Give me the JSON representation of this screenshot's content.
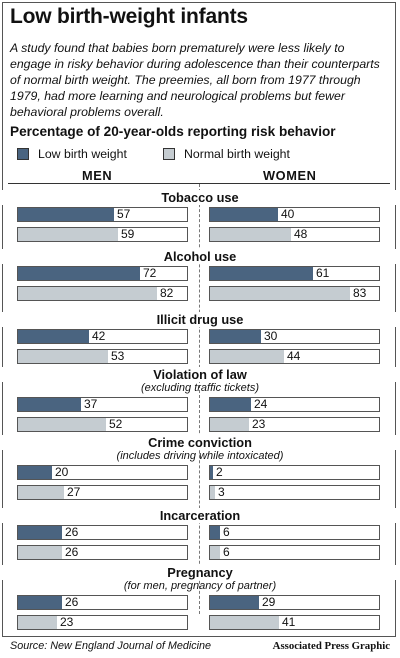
{
  "header": {
    "title": "Low birth-weight infants",
    "intro": "A study found that babies born prematurely were less likely to engage in risky behavior during adolescence than their counterparts of normal birth weight. The preemies, all born from 1977 through 1979, had more learning and neurological problems but fewer behavioral problems overall."
  },
  "chart_data": {
    "type": "bar",
    "title": "Percentage of 20-year-olds reporting risk behavior",
    "groups": [
      "MEN",
      "WOMEN"
    ],
    "legend": [
      "Low birth weight",
      "Normal birth weight"
    ],
    "colors": {
      "low": "#4a6480",
      "normal": "#c5ccd1"
    },
    "xlim": [
      0,
      100
    ],
    "categories": [
      {
        "name": "Tobacco use",
        "note": "",
        "men": {
          "low": 57,
          "normal": 59
        },
        "women": {
          "low": 40,
          "normal": 48
        }
      },
      {
        "name": "Alcohol use",
        "note": "",
        "men": {
          "low": 72,
          "normal": 82
        },
        "women": {
          "low": 61,
          "normal": 83
        }
      },
      {
        "name": "Illicit drug use",
        "note": "",
        "men": {
          "low": 42,
          "normal": 53
        },
        "women": {
          "low": 30,
          "normal": 44
        }
      },
      {
        "name": "Violation of law",
        "note": "(excluding traffic tickets)",
        "men": {
          "low": 37,
          "normal": 52
        },
        "women": {
          "low": 24,
          "normal": 23
        }
      },
      {
        "name": "Crime conviction",
        "note": "(includes driving while intoxicated)",
        "men": {
          "low": 20,
          "normal": 27
        },
        "women": {
          "low": 2,
          "normal": 3
        }
      },
      {
        "name": "Incarceration",
        "note": "",
        "men": {
          "low": 26,
          "normal": 26
        },
        "women": {
          "low": 6,
          "normal": 6
        }
      },
      {
        "name": "Pregnancy",
        "note": "(for men, pregnancy of partner)",
        "men": {
          "low": 26,
          "normal": 23
        },
        "women": {
          "low": 29,
          "normal": 41
        }
      }
    ]
  },
  "footer": {
    "source": "Source: New England Journal of Medicine",
    "credit": "Associated Press Graphic"
  }
}
